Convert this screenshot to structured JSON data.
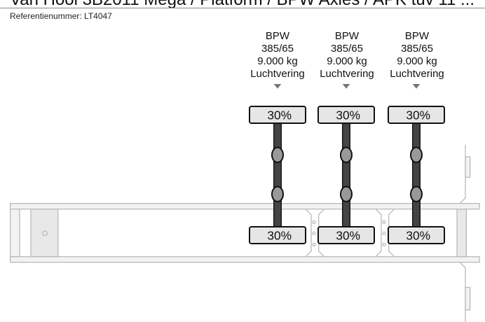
{
  "header": {
    "title": "Van Hool 3B2011 Mega / Platform / BPW Axles / APK tuv 11 ...",
    "reference": "Referentienummer: LT4047"
  },
  "axles": [
    {
      "brand": "BPW",
      "tire_size": "385/65",
      "capacity": "9.000 kg",
      "suspension": "Luchtvering",
      "top_tire": "30%",
      "bottom_tire": "30%"
    },
    {
      "brand": "BPW",
      "tire_size": "385/65",
      "capacity": "9.000 kg",
      "suspension": "Luchtvering",
      "top_tire": "30%",
      "bottom_tire": "30%"
    },
    {
      "brand": "BPW",
      "tire_size": "385/65",
      "capacity": "9.000 kg",
      "suspension": "Luchtvering",
      "top_tire": "30%",
      "bottom_tire": "30%"
    }
  ],
  "colors": {
    "axle": "#444444",
    "hub": "#999999",
    "tire": "#e6e6e6",
    "frame": "#bbbbbb"
  }
}
